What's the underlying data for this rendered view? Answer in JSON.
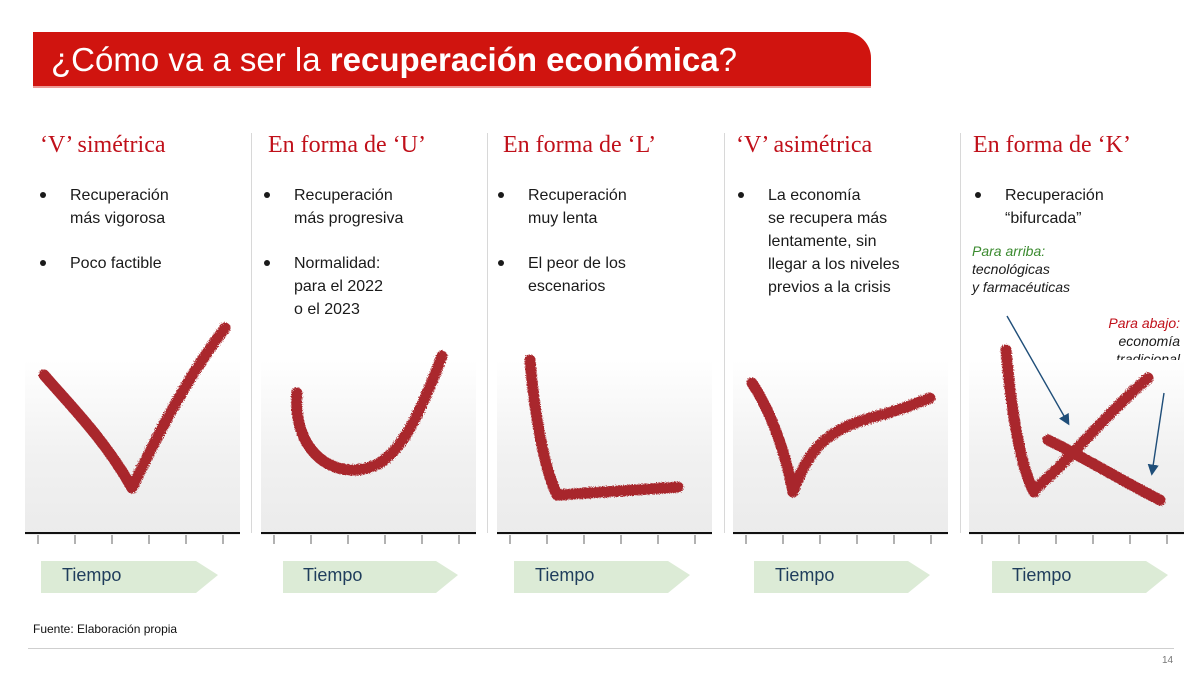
{
  "title": {
    "normal": "¿Cómo va a ser la ",
    "bold": "recuperación económica",
    "end": "?"
  },
  "panels": [
    {
      "heading": "‘V’ simétrica",
      "bullets": [
        "Recuperación\nmás vigorosa",
        "Poco factible"
      ],
      "axis_label": "Tiempo"
    },
    {
      "heading": "En forma de ‘U’",
      "bullets": [
        "Recuperación\nmás progresiva",
        "Normalidad:\npara el 2022\no el 2023"
      ],
      "axis_label": "Tiempo"
    },
    {
      "heading": "En forma de ‘L’",
      "bullets": [
        "Recuperación\nmuy lenta",
        "El peor de los\nescenarios"
      ],
      "axis_label": "Tiempo"
    },
    {
      "heading": "‘V’ asimétrica",
      "bullets": [
        "La economía\nse recupera más\nlentamente, sin\nllegar a los niveles\nprevios a la crisis"
      ],
      "axis_label": "Tiempo"
    },
    {
      "heading": "En forma de ‘K’",
      "bullets": [
        "Recuperación\n“bifurcada”"
      ],
      "axis_label": "Tiempo"
    }
  ],
  "k_notes": {
    "up_label": "Para arriba:",
    "up_text": "tecnológicas\ny farmacéuticas",
    "down_label": "Para abajo:",
    "down_text": "economía\ntradicional"
  },
  "colors": {
    "title_bg": "#d0140f",
    "heading": "#c0101a",
    "stroke": "#a3141c",
    "arrow": "#dcebd6",
    "note_up": "#3a8a2e",
    "note_down": "#c0101a",
    "pointer": "#1f4e79"
  },
  "source": "Fuente: Elaboración propia",
  "page_number": "14"
}
